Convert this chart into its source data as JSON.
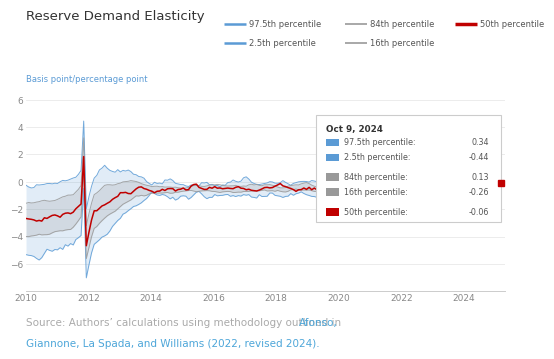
{
  "title": "Reserve Demand Elasticity",
  "ylabel": "Basis point/percentage point",
  "xlim": [
    2010,
    2025.3
  ],
  "ylim": [
    -8,
    6.5
  ],
  "yticks": [
    -6,
    -4,
    -2,
    0,
    2,
    4,
    6
  ],
  "xticks": [
    2010,
    2012,
    2014,
    2016,
    2018,
    2020,
    2022,
    2024
  ],
  "color_blue": "#5b9bd5",
  "color_blue_fill": "#aaccee",
  "color_gray": "#999999",
  "color_gray_fill": "#cccccc",
  "color_red": "#c00000",
  "annotation_date": "Oct 9, 2024",
  "annotation_97_5": "0.34",
  "annotation_2_5": "-0.44",
  "annotation_84": "0.13",
  "annotation_16": "-0.26",
  "annotation_50": "-0.06",
  "source_gray": "#aaaaaa",
  "source_blue": "#4da6d9",
  "legend_97_5": "97.5th percentile",
  "legend_2_5": "2.5th percentile",
  "legend_84": "84th percentile",
  "legend_16": "16th percentile",
  "legend_50": "50th percentile"
}
